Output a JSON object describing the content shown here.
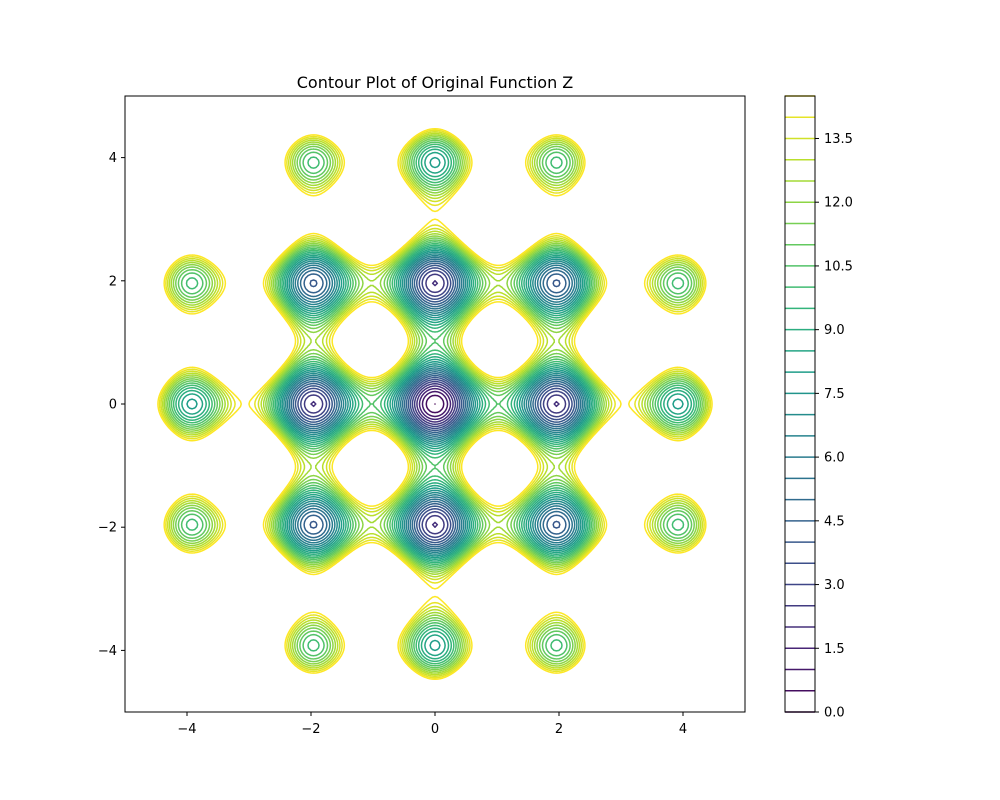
{
  "chart_data": {
    "type": "contour",
    "title": "Contour Plot of Original Function Z",
    "xlabel": "",
    "ylabel": "",
    "xlim": [
      -5,
      5
    ],
    "ylim": [
      -5,
      5
    ],
    "x_ticks": [
      -4,
      -2,
      0,
      2,
      4
    ],
    "y_ticks": [
      -4,
      -2,
      0,
      2,
      4
    ],
    "x_tick_labels": [
      "−4",
      "−2",
      "0",
      "2",
      "4"
    ],
    "y_tick_labels": [
      "−4",
      "−2",
      "0",
      "2",
      "4"
    ],
    "levels": [
      0.0,
      0.5,
      1.0,
      1.5,
      2.0,
      2.5,
      3.0,
      3.5,
      4.0,
      4.5,
      5.0,
      5.5,
      6.0,
      6.5,
      7.0,
      7.5,
      8.0,
      8.5,
      9.0,
      9.5,
      10.0,
      10.5,
      11.0,
      11.5,
      12.0,
      12.5,
      13.0,
      13.5,
      14.0,
      14.5
    ],
    "colorbar": {
      "range": [
        0.0,
        14.5
      ],
      "ticks": [
        0.0,
        1.5,
        3.0,
        4.5,
        6.0,
        7.5,
        9.0,
        10.5,
        12.0,
        13.5
      ],
      "tick_labels": [
        "0.0",
        "1.5",
        "3.0",
        "4.5",
        "6.0",
        "7.5",
        "9.0",
        "10.5",
        "12.0",
        "13.5"
      ]
    },
    "colormap": "viridis",
    "grid": false,
    "legend": "none"
  }
}
